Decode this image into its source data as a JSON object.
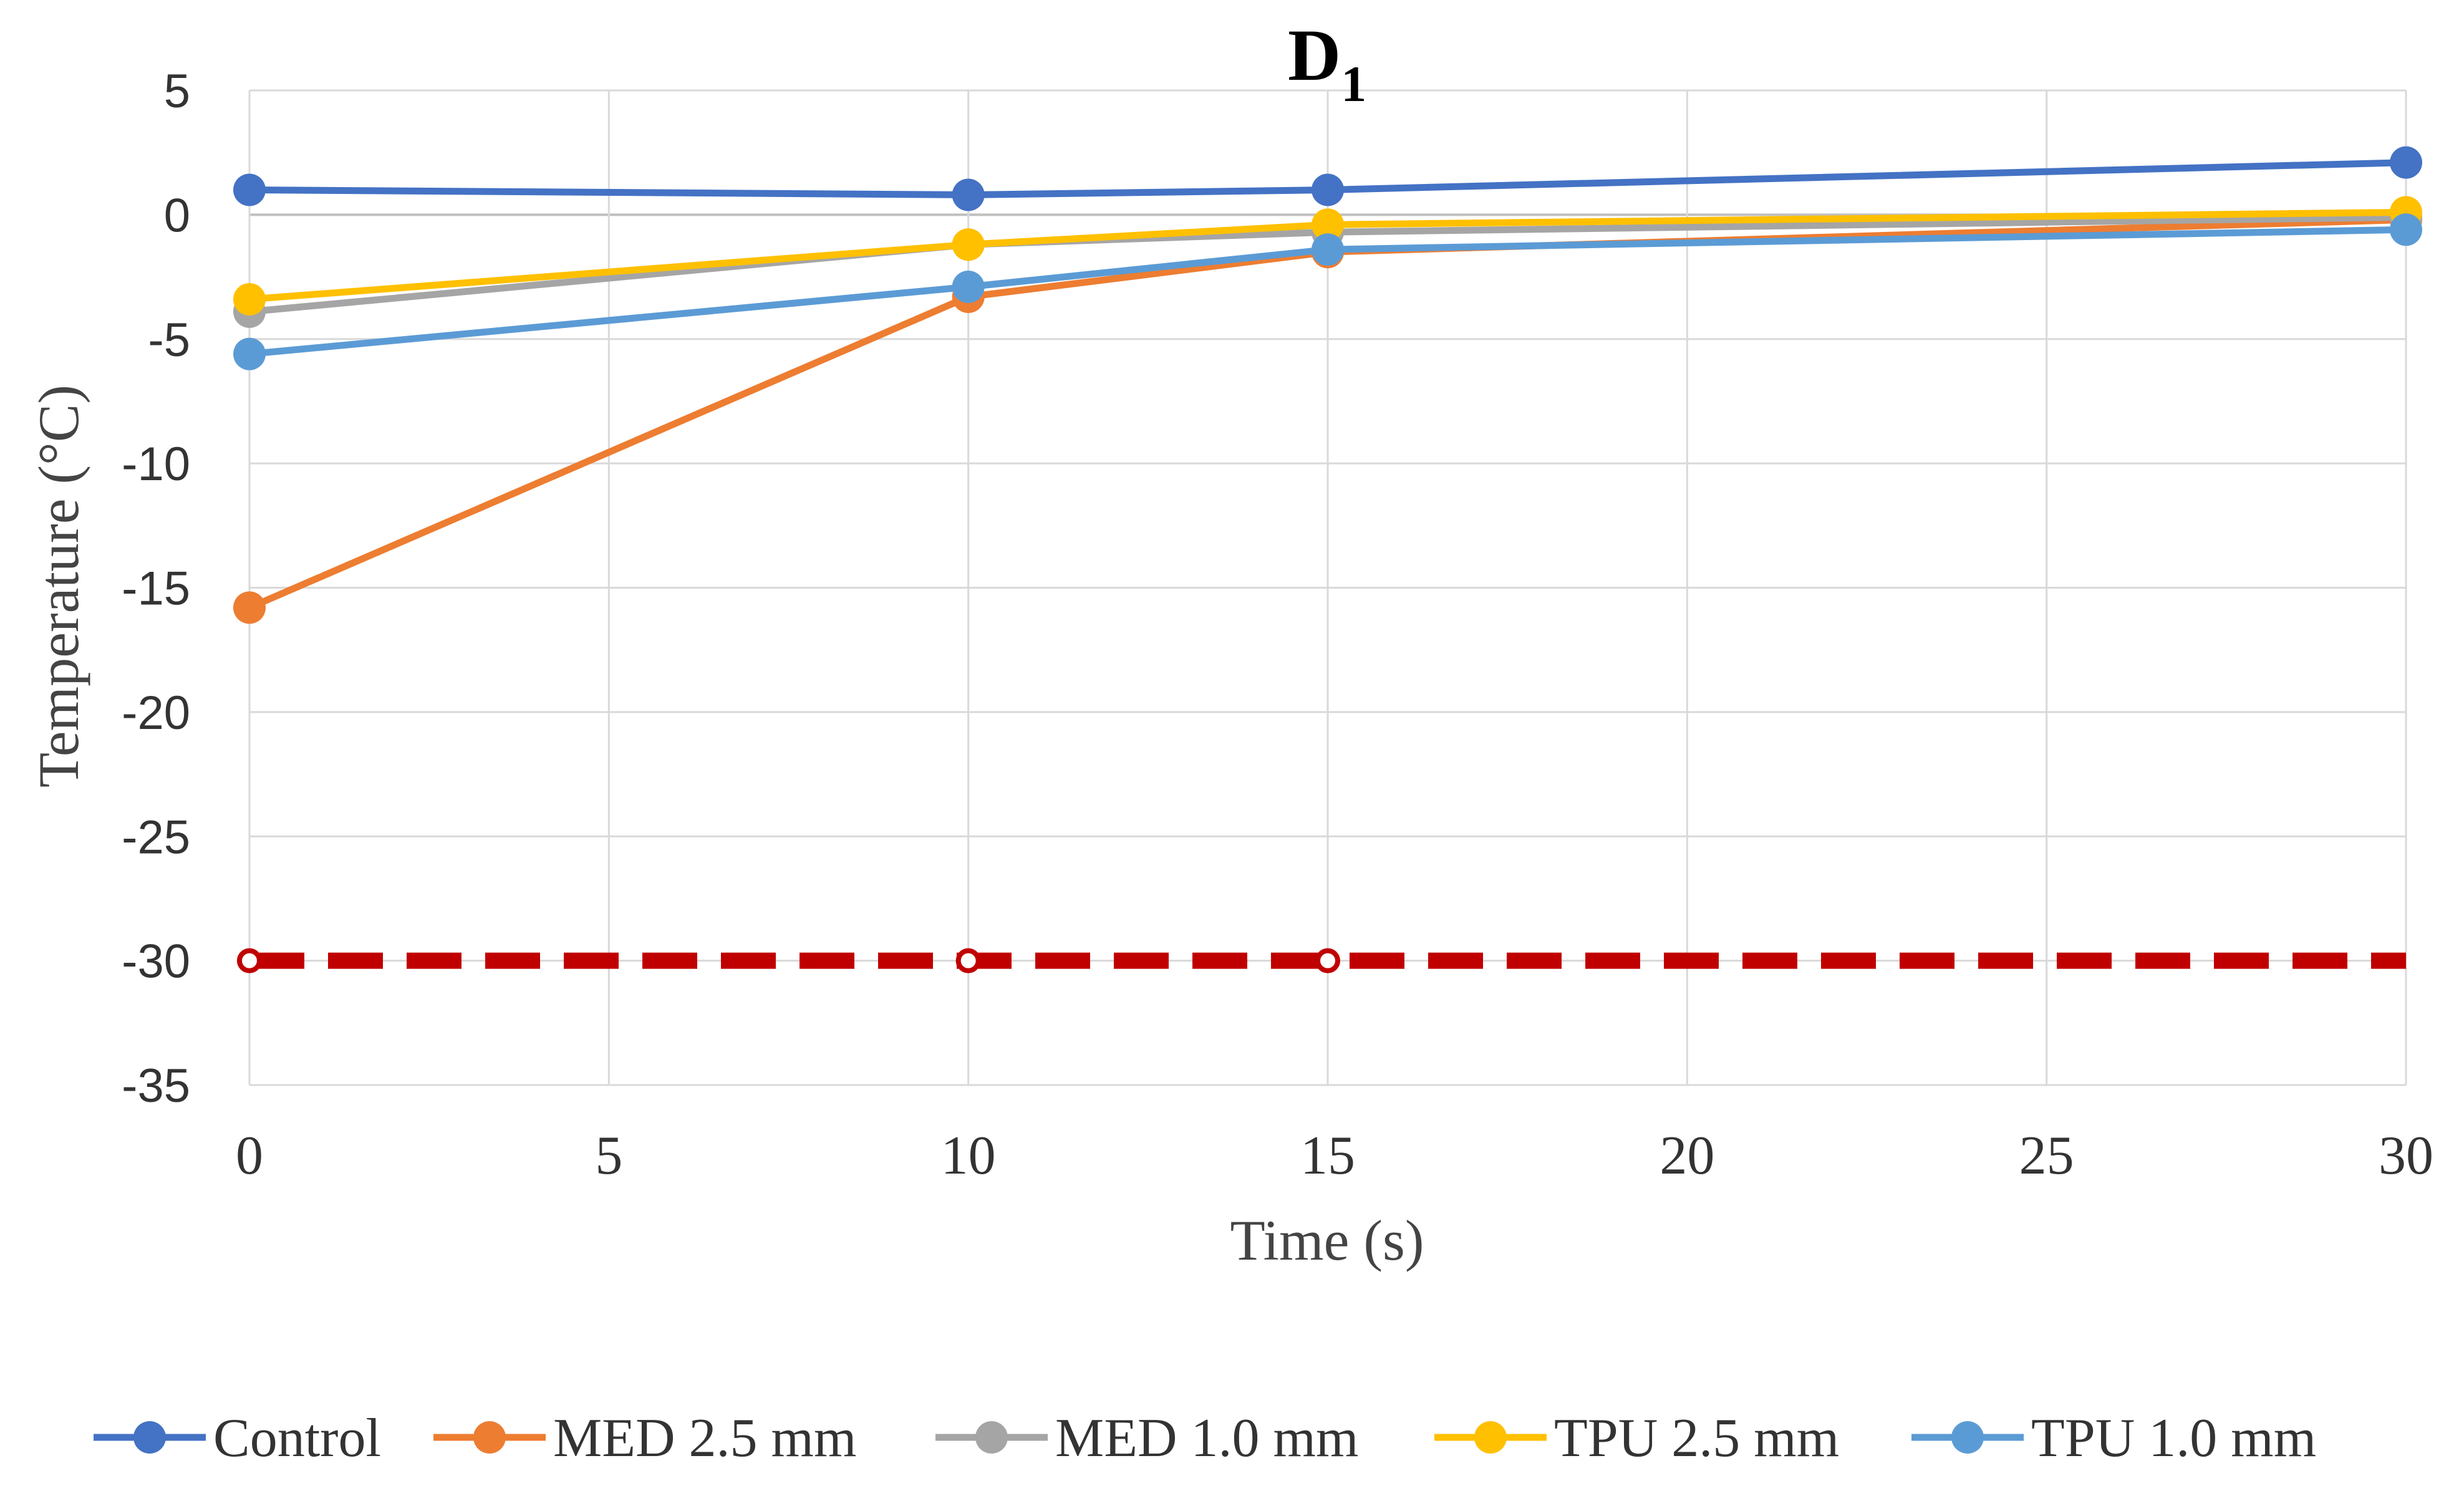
{
  "chart_data": {
    "type": "line",
    "title": "D",
    "title_subscript": "1",
    "xlabel": "Time (s)",
    "ylabel": "Temperature (°C)",
    "xlim": [
      0,
      30
    ],
    "ylim": [
      -35,
      5
    ],
    "xticks": [
      0,
      5,
      10,
      15,
      20,
      25,
      30
    ],
    "yticks": [
      5,
      0,
      -5,
      -10,
      -15,
      -20,
      -25,
      -30,
      -35
    ],
    "grid": true,
    "legend_position": "bottom",
    "series": [
      {
        "name": "Control",
        "color": "#4472C4",
        "x": [
          0,
          10,
          15,
          30
        ],
        "values": [
          1.0,
          0.8,
          1.0,
          2.1
        ]
      },
      {
        "name": "MED 2.5 mm",
        "color": "#ED7D31",
        "x": [
          0,
          10,
          15,
          30
        ],
        "values": [
          -15.8,
          -3.3,
          -1.5,
          -0.2
        ]
      },
      {
        "name": "MED 1.0 mm",
        "color": "#A5A5A5",
        "x": [
          0,
          10,
          15,
          30
        ],
        "values": [
          -3.9,
          -1.2,
          -0.7,
          -0.1
        ]
      },
      {
        "name": "TPU 2.5 mm",
        "color": "#FFC000",
        "x": [
          0,
          10,
          15,
          30
        ],
        "values": [
          -3.4,
          -1.2,
          -0.4,
          0.1
        ]
      },
      {
        "name": "TPU 1.0 mm",
        "color": "#5B9BD5",
        "x": [
          0,
          10,
          15,
          30
        ],
        "values": [
          -5.6,
          -2.9,
          -1.4,
          -0.6
        ]
      }
    ],
    "reference_line": {
      "y": -30,
      "color": "#C00000",
      "style": "dashed",
      "x_markers": [
        0,
        10,
        15
      ]
    }
  }
}
